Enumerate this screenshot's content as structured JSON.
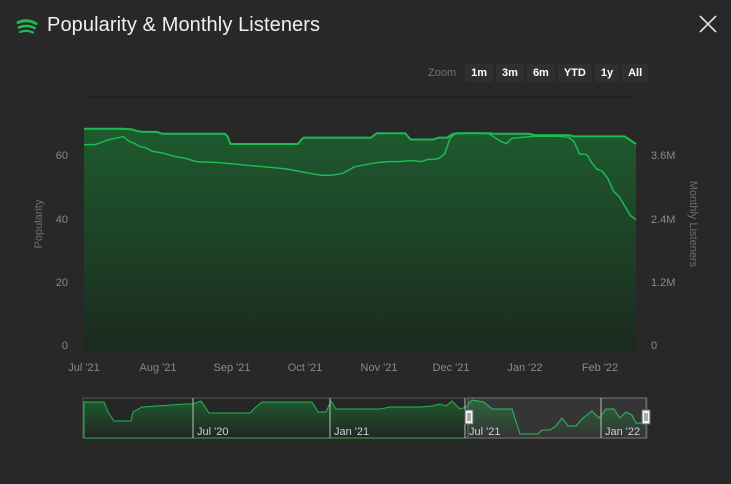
{
  "header": {
    "title": "Popularity & Monthly Listeners",
    "logo_icon": "spotify-icon",
    "close_icon": "close-icon"
  },
  "zoom": {
    "label": "Zoom",
    "buttons": [
      "1m",
      "3m",
      "6m",
      "YTD",
      "1y",
      "All"
    ]
  },
  "colors": {
    "background": "#282828",
    "line": "#1db954",
    "area_top": "#1e5a2e",
    "area_bottom": "#1c2a1f",
    "axis_text": "#8a8a8a",
    "grid": "#1e1e1e"
  },
  "chart_data": {
    "type": "line",
    "x_tick_labels": [
      "Jul '21",
      "Aug '21",
      "Sep '21",
      "Oct '21",
      "Nov '21",
      "Dec '21",
      "Jan '22",
      "Feb '22"
    ],
    "y_left": {
      "label": "Popularity",
      "ticks": [
        "0",
        "20",
        "40",
        "60"
      ],
      "range": [
        0,
        80
      ]
    },
    "y_right": {
      "label": "Monthly Listeners",
      "ticks": [
        "0",
        "1.2M",
        "2.4M",
        "3.6M"
      ],
      "range": [
        0,
        4800000
      ]
    },
    "series": [
      {
        "axis": "left",
        "x": [
          0,
          7,
          8.5,
          9.5,
          10.5,
          13,
          13.5,
          14,
          25,
          25.5,
          26,
          38,
          38.5,
          39,
          51,
          51.5,
          52,
          57,
          58,
          62,
          63,
          64.5,
          65.5,
          68,
          72,
          73,
          79,
          80,
          86,
          87,
          89,
          96,
          97,
          98
        ],
        "values": [
          70,
          70,
          69.8,
          69.2,
          69,
          69,
          68.6,
          68.4,
          68.4,
          67.6,
          65.2,
          65.2,
          66.4,
          67.2,
          67.2,
          68,
          68.6,
          68.6,
          66.6,
          66.6,
          67.2,
          67.2,
          68.4,
          68.6,
          68.6,
          68.4,
          68.4,
          68,
          68,
          67.6,
          67.6,
          67.6,
          66.4,
          65.2
        ]
      },
      {
        "axis": "right",
        "x": [
          0,
          2,
          4,
          5.5,
          7,
          8,
          9,
          10,
          11,
          12,
          14,
          16,
          18,
          20,
          24,
          28,
          32,
          36,
          38,
          40,
          42,
          43,
          44,
          46,
          48,
          50,
          52,
          54,
          56,
          58,
          60,
          61,
          62,
          63,
          64,
          65,
          66,
          68,
          70,
          72,
          74,
          75,
          76,
          78,
          80,
          82,
          84,
          86,
          87,
          88,
          89,
          89.5,
          90,
          91,
          92,
          93,
          94,
          95,
          96,
          97,
          98
        ],
        "values": [
          3.9,
          3.9,
          3.98,
          4.02,
          4.05,
          3.96,
          3.92,
          3.86,
          3.84,
          3.78,
          3.74,
          3.68,
          3.64,
          3.58,
          3.56,
          3.52,
          3.48,
          3.44,
          3.4,
          3.36,
          3.32,
          3.32,
          3.32,
          3.36,
          3.48,
          3.52,
          3.56,
          3.58,
          3.58,
          3.6,
          3.58,
          3.62,
          3.62,
          3.64,
          3.72,
          4.02,
          4.12,
          4.12,
          4.12,
          4.1,
          3.96,
          3.92,
          4.02,
          4.04,
          4.06,
          4.06,
          4.06,
          4.04,
          3.96,
          3.72,
          3.72,
          3.68,
          3.58,
          3.44,
          3.4,
          3.26,
          3.02,
          2.92,
          2.74,
          2.56,
          2.48
        ]
      }
    ]
  },
  "navigator": {
    "x_tick_labels": [
      "Jul '20",
      "Jan '21",
      "Jul '21",
      "Jan '22"
    ]
  }
}
